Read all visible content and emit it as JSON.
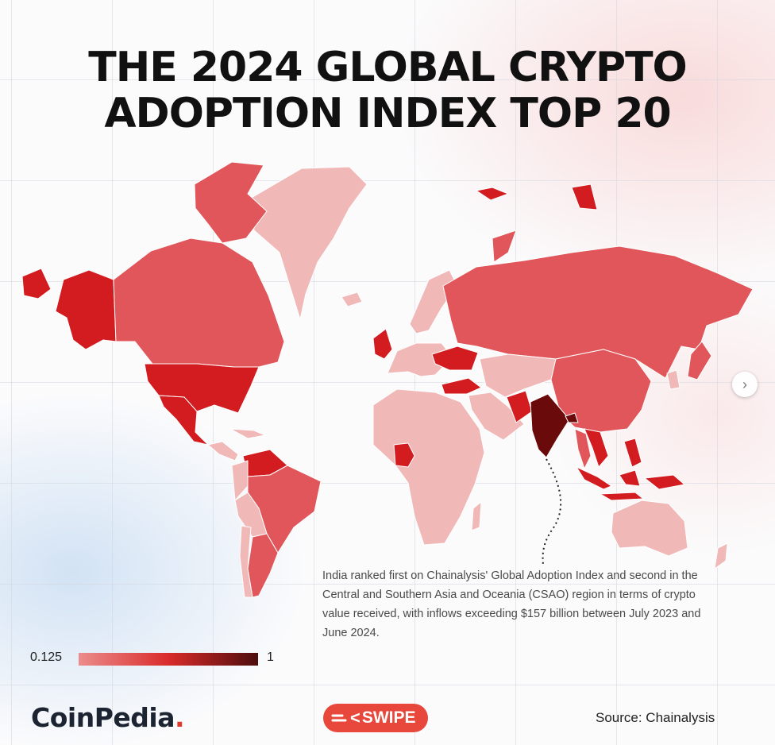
{
  "title": {
    "line1": "THE 2024 GLOBAL CRYPTO",
    "line2": "ADOPTION INDEX TOP 20"
  },
  "colors": {
    "light": "#f1b8b8",
    "medium": "#e0565a",
    "strong": "#d21c1f",
    "darkest": "#6b0a0a",
    "accent": "#e8483b"
  },
  "info_text": "India ranked first on Chainalysis' Global Adoption Index and second in the Central and Southern Asia and Oceania (CSAO) region in terms of crypto value received, with inflows exceeding $157 billion between July 2023 and June 2024.",
  "legend": {
    "min": "0.125",
    "max": "1"
  },
  "brand": {
    "name": "CoinPedia",
    "dot": "."
  },
  "swipe": {
    "chevron": "<",
    "label": "SWIPE"
  },
  "source": "Source: Chainalysis",
  "next_icon": "chevron-right-icon"
}
